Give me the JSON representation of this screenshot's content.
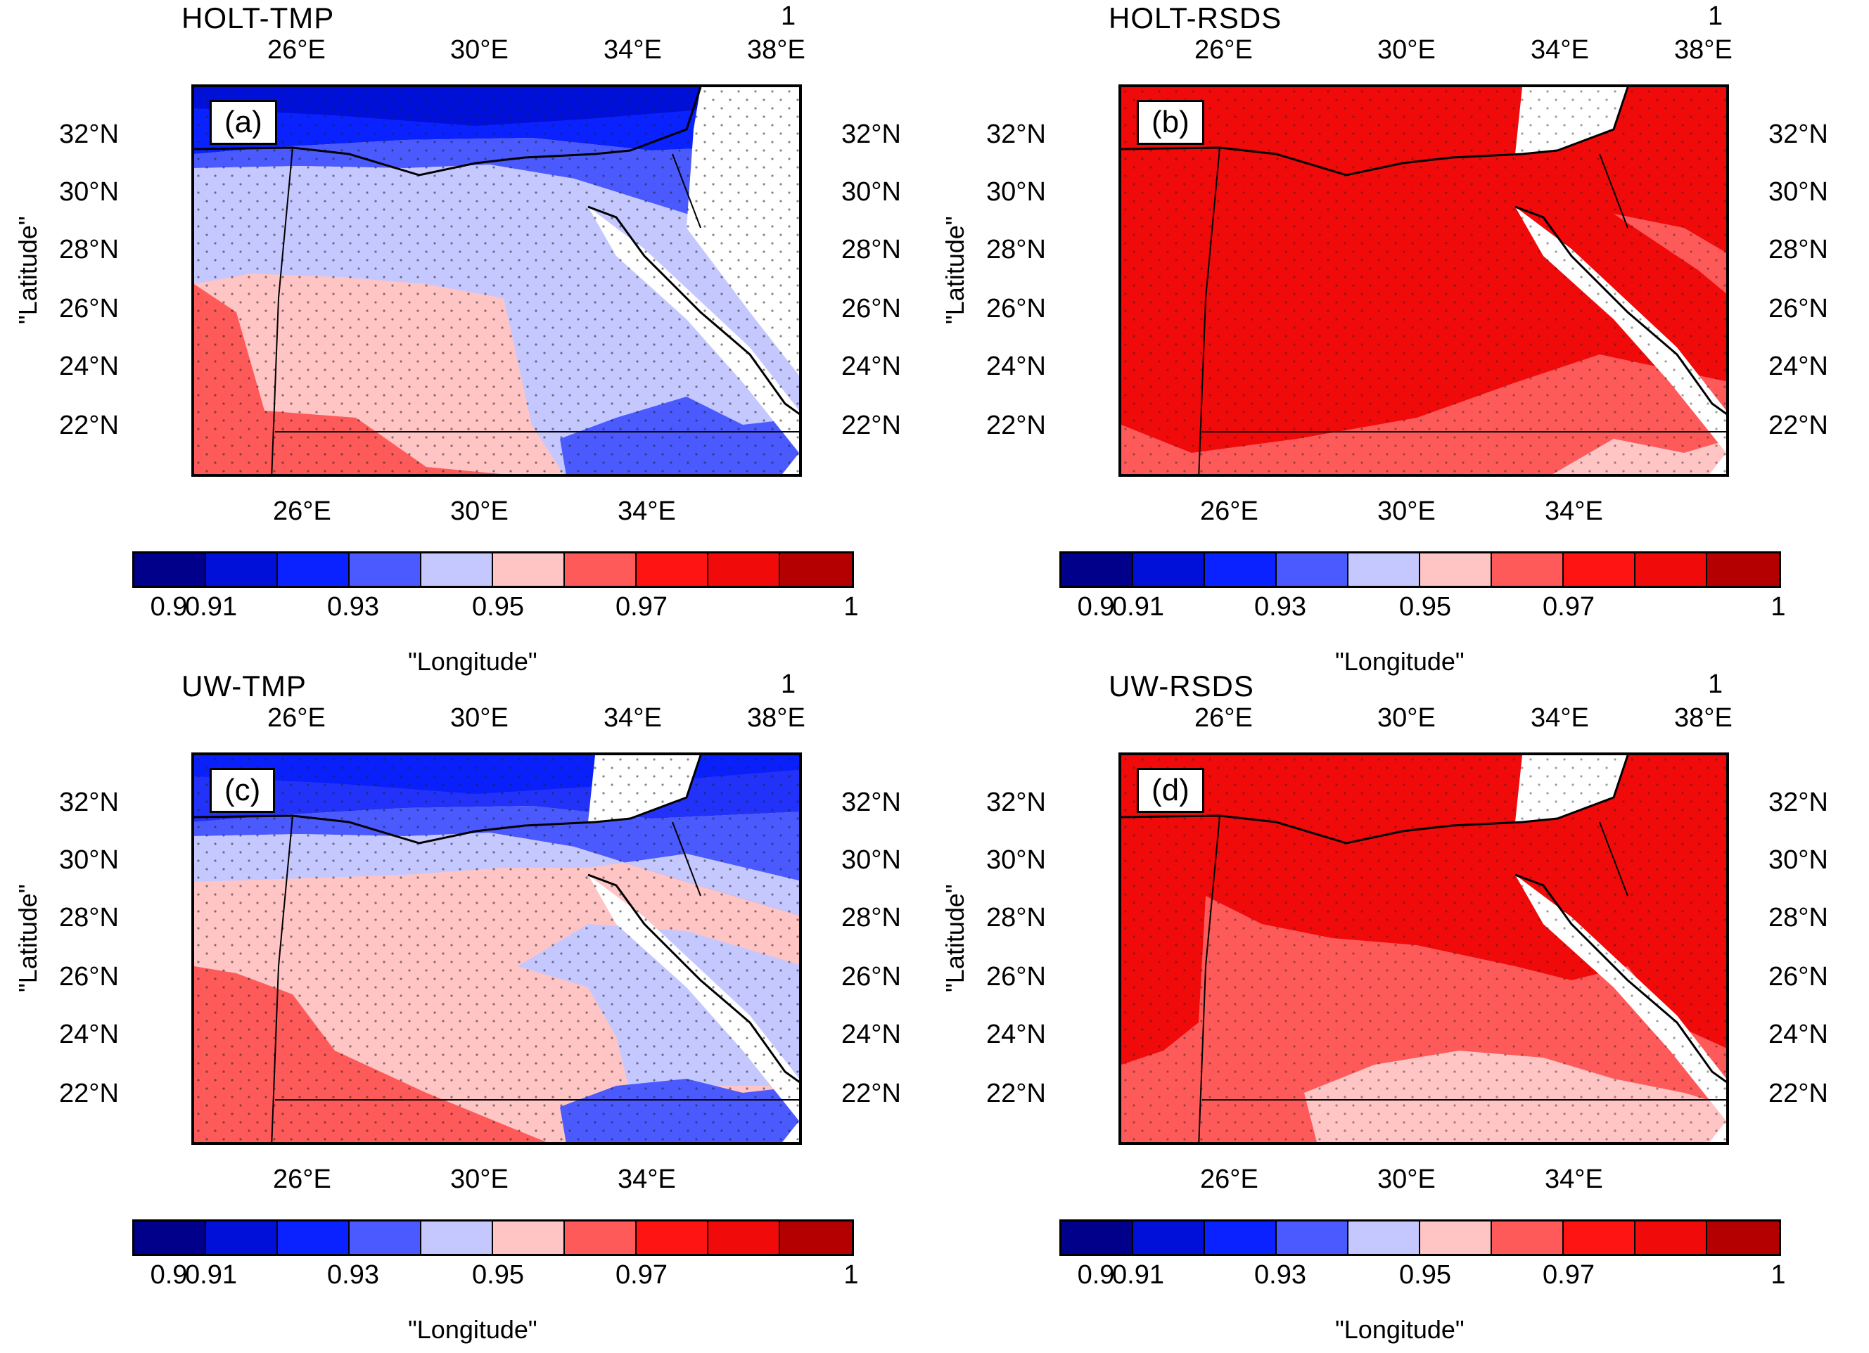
{
  "colorbar": {
    "colors": [
      "#00008b",
      "#0010d8",
      "#0a22ff",
      "#4a5aff",
      "#c4c8ff",
      "#ffc4c4",
      "#ff5a5a",
      "#ff1414",
      "#f00a0a",
      "#b40000"
    ],
    "labels": [
      "0.9",
      "0.91",
      "0.93",
      "0.95",
      "0.97",
      "1"
    ]
  },
  "ticks": {
    "lat": [
      "32°N",
      "30°N",
      "28°N",
      "26°N",
      "24°N",
      "22°N"
    ],
    "lon_top": [
      "26°E",
      "30°E",
      "34°E",
      "38°E"
    ],
    "lon_bottom": [
      "26°E",
      "30°E",
      "34°E"
    ]
  },
  "axis": {
    "ylabel": "\"Latitude\"",
    "xlabel": "\"Longitude\""
  },
  "panels": [
    {
      "id": "a",
      "title": "HOLT-TMP",
      "label": "(a)",
      "corner": "1"
    },
    {
      "id": "b",
      "title": "HOLT-RSDS",
      "label": "(b)",
      "corner": "1"
    },
    {
      "id": "c",
      "title": "UW-TMP",
      "label": "(c)",
      "corner": "1"
    },
    {
      "id": "d",
      "title": "UW-RSDS",
      "label": "(d)",
      "corner": "1"
    }
  ]
}
